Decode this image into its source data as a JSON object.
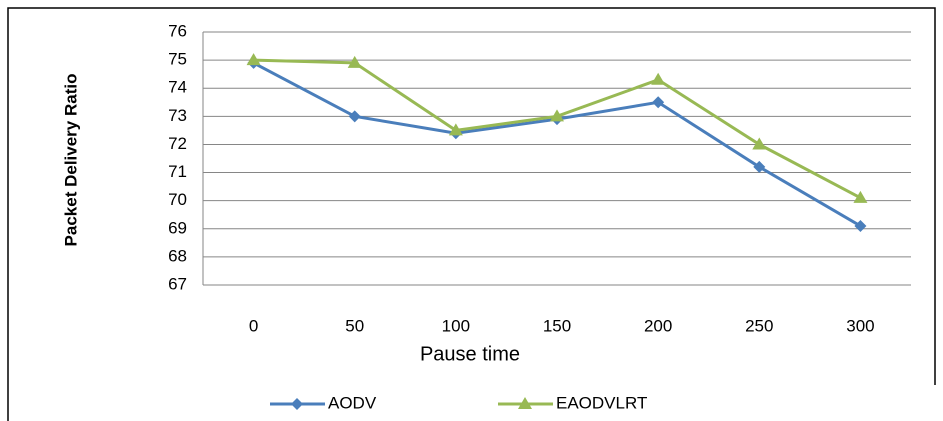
{
  "chart_data": {
    "type": "line",
    "y_label": "Packet Delivery Ratio",
    "x_label": "Pause  time",
    "categories": [
      "0",
      "50",
      "100",
      "150",
      "200",
      "250",
      "300"
    ],
    "series": [
      {
        "name": "AODV",
        "color": "#4a7ebb",
        "marker": "diamond",
        "values": [
          74.9,
          73.0,
          72.4,
          72.9,
          73.5,
          71.2,
          69.1
        ]
      },
      {
        "name": "EAODVLRT",
        "color": "#98b954",
        "marker": "triangle",
        "values": [
          75.0,
          74.9,
          72.5,
          73.0,
          74.3,
          72.0,
          70.1
        ]
      }
    ],
    "ylim": [
      67,
      76
    ],
    "yticks": [
      67,
      68,
      69,
      70,
      71,
      72,
      73,
      74,
      75,
      76
    ],
    "grid": true,
    "legend": "bottom"
  }
}
